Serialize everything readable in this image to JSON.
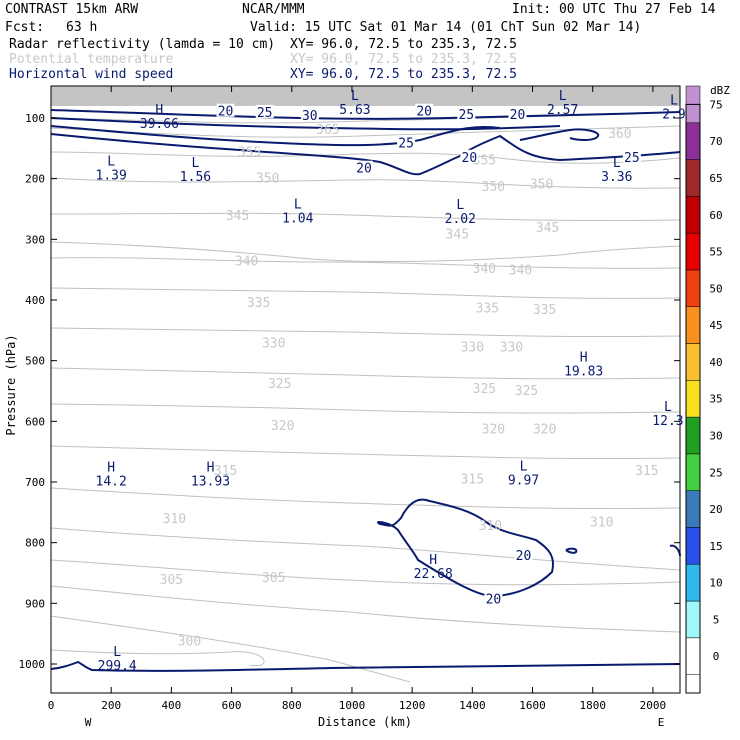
{
  "header": {
    "model": "CONTRAST 15km ARW",
    "org": "NCAR/MMM",
    "init": "Init: 00 UTC Thu 27 Feb 14",
    "fcst_label": "Fcst:",
    "fcst_value": "63 h",
    "valid": "Valid: 15 UTC Sat 01 Mar 14 (01 ChT Sun 02 Mar 14)",
    "fields": [
      {
        "name": "Radar reflectivity (lamda = 10 cm)",
        "xy": "XY=  96.0, 72.5 to 235.3, 72.5",
        "color": "#000000"
      },
      {
        "name": "Potential temperature",
        "xy": "XY=  96.0, 72.5 to 235.3, 72.5",
        "color": "#c8c8c8"
      },
      {
        "name": "Horizontal wind speed",
        "xy": "XY=  96.0, 72.5 to 235.3, 72.5",
        "color": "#0a1a6e"
      }
    ]
  },
  "chart_data": {
    "type": "contour",
    "xlabel": "Distance (km)",
    "ylabel": "Pressure (hPa)",
    "xlim": [
      0,
      2090
    ],
    "ylim": [
      1050,
      70
    ],
    "x_ticks": [
      0,
      200,
      400,
      600,
      800,
      1000,
      1200,
      1400,
      1600,
      1800,
      2000
    ],
    "y_ticks": [
      100,
      200,
      300,
      400,
      500,
      600,
      700,
      800,
      900,
      1000
    ],
    "endpoint_left": "W",
    "endpoint_right": "E",
    "colorbar": {
      "unit": "dBZ",
      "levels": [
        "0",
        "5",
        "10",
        "15",
        "20",
        "25",
        "30",
        "35",
        "40",
        "45",
        "50",
        "55",
        "60",
        "65",
        "70",
        "75"
      ],
      "colors": [
        "#ffffff",
        "#a0f8f8",
        "#30b8f0",
        "#2850e8",
        "#3a7ab8",
        "#40d040",
        "#20a020",
        "#f8e020",
        "#f8c030",
        "#f89020",
        "#f04010",
        "#e80000",
        "#c00000",
        "#a02828",
        "#8c3098",
        "#c090d0"
      ]
    },
    "theta_contours": [
      {
        "label": "365",
        "x": 920,
        "p": 118
      },
      {
        "label": "360",
        "x": 1890,
        "p": 125
      },
      {
        "label": "355",
        "x": 660,
        "p": 155
      },
      {
        "label": "355",
        "x": 1440,
        "p": 168
      },
      {
        "label": "350",
        "x": 720,
        "p": 198
      },
      {
        "label": "350",
        "x": 1470,
        "p": 212
      },
      {
        "label": "350",
        "x": 1630,
        "p": 208
      },
      {
        "label": "345",
        "x": 620,
        "p": 260
      },
      {
        "label": "345",
        "x": 1650,
        "p": 280
      },
      {
        "label": "345",
        "x": 1350,
        "p": 290
      },
      {
        "label": "340",
        "x": 650,
        "p": 335
      },
      {
        "label": "340",
        "x": 1440,
        "p": 347
      },
      {
        "label": "340",
        "x": 1560,
        "p": 350
      },
      {
        "label": "335",
        "x": 690,
        "p": 403
      },
      {
        "label": "335",
        "x": 1450,
        "p": 412
      },
      {
        "label": "335",
        "x": 1640,
        "p": 415
      },
      {
        "label": "330",
        "x": 740,
        "p": 470
      },
      {
        "label": "330",
        "x": 1400,
        "p": 477
      },
      {
        "label": "330",
        "x": 1530,
        "p": 477
      },
      {
        "label": "325",
        "x": 760,
        "p": 537
      },
      {
        "label": "325",
        "x": 1440,
        "p": 545
      },
      {
        "label": "325",
        "x": 1580,
        "p": 548
      },
      {
        "label": "320",
        "x": 770,
        "p": 606
      },
      {
        "label": "320",
        "x": 1470,
        "p": 612
      },
      {
        "label": "320",
        "x": 1640,
        "p": 612
      },
      {
        "label": "315",
        "x": 580,
        "p": 680
      },
      {
        "label": "315",
        "x": 1400,
        "p": 694
      },
      {
        "label": "315",
        "x": 1980,
        "p": 680
      },
      {
        "label": "310",
        "x": 410,
        "p": 759
      },
      {
        "label": "310",
        "x": 1460,
        "p": 771
      },
      {
        "label": "310",
        "x": 1830,
        "p": 765
      },
      {
        "label": "305",
        "x": 400,
        "p": 860
      },
      {
        "label": "305",
        "x": 740,
        "p": 857
      },
      {
        "label": "300",
        "x": 460,
        "p": 961
      }
    ],
    "wind_contours": [
      {
        "label": "20",
        "x": 580,
        "p": 88
      },
      {
        "label": "25",
        "x": 710,
        "p": 90
      },
      {
        "label": "30",
        "x": 860,
        "p": 95
      },
      {
        "label": "20",
        "x": 1240,
        "p": 88
      },
      {
        "label": "25",
        "x": 1380,
        "p": 93
      },
      {
        "label": "20",
        "x": 1550,
        "p": 93
      },
      {
        "label": "25",
        "x": 1180,
        "p": 140
      },
      {
        "label": "20",
        "x": 1390,
        "p": 164
      },
      {
        "label": "20",
        "x": 1040,
        "p": 182
      },
      {
        "label": "25",
        "x": 1930,
        "p": 164
      },
      {
        "label": "20",
        "x": 1570,
        "p": 820
      },
      {
        "label": "20",
        "x": 1470,
        "p": 892
      }
    ],
    "extrema": [
      {
        "type": "H",
        "value": "39.66",
        "x": 360,
        "p": 93,
        "field": "wind"
      },
      {
        "type": "L",
        "value": "5.63",
        "x": 1010,
        "p": 70,
        "field": "wind"
      },
      {
        "type": "L",
        "value": "2.57",
        "x": 1700,
        "p": 70,
        "field": "wind"
      },
      {
        "type": "L",
        "value": "2.9",
        "x": 2070,
        "p": 78,
        "field": "wind"
      },
      {
        "type": "L",
        "value": "1.39",
        "x": 200,
        "p": 178,
        "field": "wind"
      },
      {
        "type": "L",
        "value": "1.56",
        "x": 480,
        "p": 181,
        "field": "wind"
      },
      {
        "type": "L",
        "value": "3.36",
        "x": 1880,
        "p": 181,
        "field": "wind"
      },
      {
        "type": "L",
        "value": "1.04",
        "x": 820,
        "p": 249,
        "field": "wind"
      },
      {
        "type": "L",
        "value": "2.02",
        "x": 1360,
        "p": 250,
        "field": "wind"
      },
      {
        "type": "H",
        "value": "19.83",
        "x": 1770,
        "p": 501,
        "field": "wind"
      },
      {
        "type": "L",
        "value": "12.3",
        "x": 2050,
        "p": 583,
        "field": "wind"
      },
      {
        "type": "H",
        "value": "14.2",
        "x": 200,
        "p": 683,
        "field": "wind"
      },
      {
        "type": "H",
        "value": "13.93",
        "x": 530,
        "p": 683,
        "field": "wind"
      },
      {
        "type": "L",
        "value": "9.97",
        "x": 1570,
        "p": 681,
        "field": "wind"
      },
      {
        "type": "H",
        "value": "22.68",
        "x": 1270,
        "p": 835,
        "field": "wind"
      },
      {
        "type": "L",
        "value": "299.4",
        "x": 220,
        "p": 987,
        "field": "theta"
      }
    ]
  }
}
